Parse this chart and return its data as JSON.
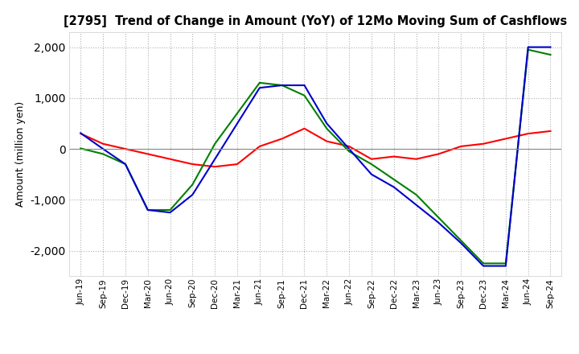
{
  "title": "[2795]  Trend of Change in Amount (YoY) of 12Mo Moving Sum of Cashflows",
  "ylabel": "Amount (million yen)",
  "ylim": [
    -2500,
    2300
  ],
  "yticks": [
    -2000,
    -1000,
    0,
    1000,
    2000
  ],
  "x_labels": [
    "Jun-19",
    "Sep-19",
    "Dec-19",
    "Mar-20",
    "Jun-20",
    "Sep-20",
    "Dec-20",
    "Mar-21",
    "Jun-21",
    "Sep-21",
    "Dec-21",
    "Mar-22",
    "Jun-22",
    "Sep-22",
    "Dec-22",
    "Mar-23",
    "Jun-23",
    "Sep-23",
    "Dec-23",
    "Mar-24",
    "Jun-24",
    "Sep-24"
  ],
  "operating": [
    300,
    100,
    0,
    -100,
    -200,
    -300,
    -350,
    -300,
    50,
    200,
    400,
    150,
    50,
    -200,
    -150,
    -200,
    -100,
    50,
    100,
    200,
    300,
    350
  ],
  "investing": [
    10,
    -100,
    -300,
    -1200,
    -1200,
    -700,
    100,
    700,
    1300,
    1250,
    1050,
    400,
    -50,
    -300,
    -600,
    -900,
    -1350,
    -1800,
    -2250,
    -2250,
    1950,
    1850
  ],
  "free": [
    310,
    0,
    -300,
    -1200,
    -1250,
    -900,
    -200,
    500,
    1200,
    1250,
    1250,
    500,
    0,
    -500,
    -750,
    -1100,
    -1450,
    -1850,
    -2300,
    -2300,
    2000,
    2000
  ],
  "operating_color": "#ff0000",
  "investing_color": "#008000",
  "free_color": "#0000cc",
  "background_color": "#ffffff",
  "grid_color": "#b0b0b0"
}
